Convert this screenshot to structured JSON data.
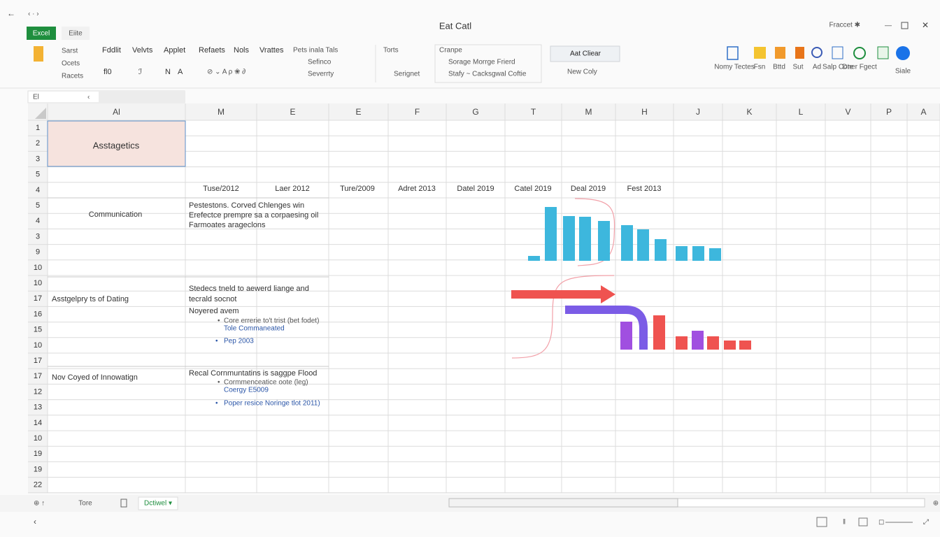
{
  "window": {
    "title": "Eat Catl",
    "account": "Fraccet ✱"
  },
  "ribbon": {
    "tabs": [
      "Excel",
      "Eiite"
    ],
    "clipboard": [
      "Sarst",
      "Ocets",
      "Racets"
    ],
    "menu": [
      "Fddlit",
      "Velvts",
      "Applet",
      "Refaets",
      "Nols",
      "Vrattes"
    ],
    "font": [
      "fl0",
      "ℐ",
      "N",
      "A"
    ],
    "styles": [
      "Pets inala Tals",
      "Sefinco",
      "Severrty"
    ],
    "sort": [
      "Torts",
      "Serignet"
    ],
    "change": [
      "Cranpe",
      "Sorage Morrge Frierd",
      "Stafy ~ Cacksgwal Coftie"
    ],
    "clear": [
      "Aat Cliear",
      "New Coly"
    ],
    "tools": [
      "Nomy Tectes",
      "Fsn",
      "Bttd",
      "Sut",
      "Ad",
      "Salp Cote",
      "Dner Fgect",
      "Siale"
    ]
  },
  "formula_bar": {
    "cell": "El"
  },
  "sheet": {
    "columns": [
      "Al",
      "M",
      "E",
      "E",
      "F",
      "G",
      "T",
      "M",
      "H",
      "J",
      "K",
      "L",
      "V",
      "P",
      "A"
    ],
    "rows": [
      "1",
      "2",
      "3",
      "5",
      "4",
      "5",
      "4",
      "3",
      "9",
      "10",
      "10",
      "17",
      "16",
      "15",
      "10",
      "17",
      "17",
      "12",
      "13",
      "14",
      "10",
      "19",
      "19",
      "22"
    ],
    "heading": "Asstagetics",
    "dates": [
      "Tuse/2012",
      "Laer 2012",
      "Ture/2009",
      "Adret 2013",
      "Datel 2019",
      "Catel 2019",
      "Deal 2019",
      "Fest 2013"
    ],
    "sections": [
      {
        "label": "Communication",
        "lines": [
          "Pestestons. Corved Chlenges win",
          "Erefectce prempre sa a corpaesing oil",
          "Farmoates arageclons"
        ],
        "bullets": []
      },
      {
        "label": "Asstgelpry ts of Dating",
        "lines": [
          "Stedecs tneld to aewerd liange and",
          "tecrald socnot",
          "Noyered avem"
        ],
        "bullets": [
          "Core errerie to't trist (bet fodet)",
          "Tole Commaneated",
          "Pep 2003"
        ]
      },
      {
        "label": "Nov Coyed of Innowatign",
        "lines": [
          "Recal Cornmuntatins is saggpe Flood"
        ],
        "bullets": [
          "Cormmenceatice oote (leg)",
          "Coergy E5009",
          "Poper resice Noringe tlot 2011)"
        ]
      }
    ]
  },
  "sheet_charts": [
    {
      "type": "bar",
      "color": "#3db7dd",
      "values": [
        7,
        77,
        64,
        63,
        57,
        51,
        45,
        31,
        21,
        21,
        18
      ]
    },
    {
      "type": "bar",
      "colors": [
        "#a04fe0",
        "#ef5350",
        "#ef5350",
        "#a04fe0",
        "#ef5350",
        "#ef5350",
        "#ef5350"
      ],
      "values": [
        40,
        49,
        19,
        27,
        19,
        13,
        13
      ]
    }
  ],
  "sheet_tabs": [
    "Tore",
    "Dctiwel ▾"
  ]
}
